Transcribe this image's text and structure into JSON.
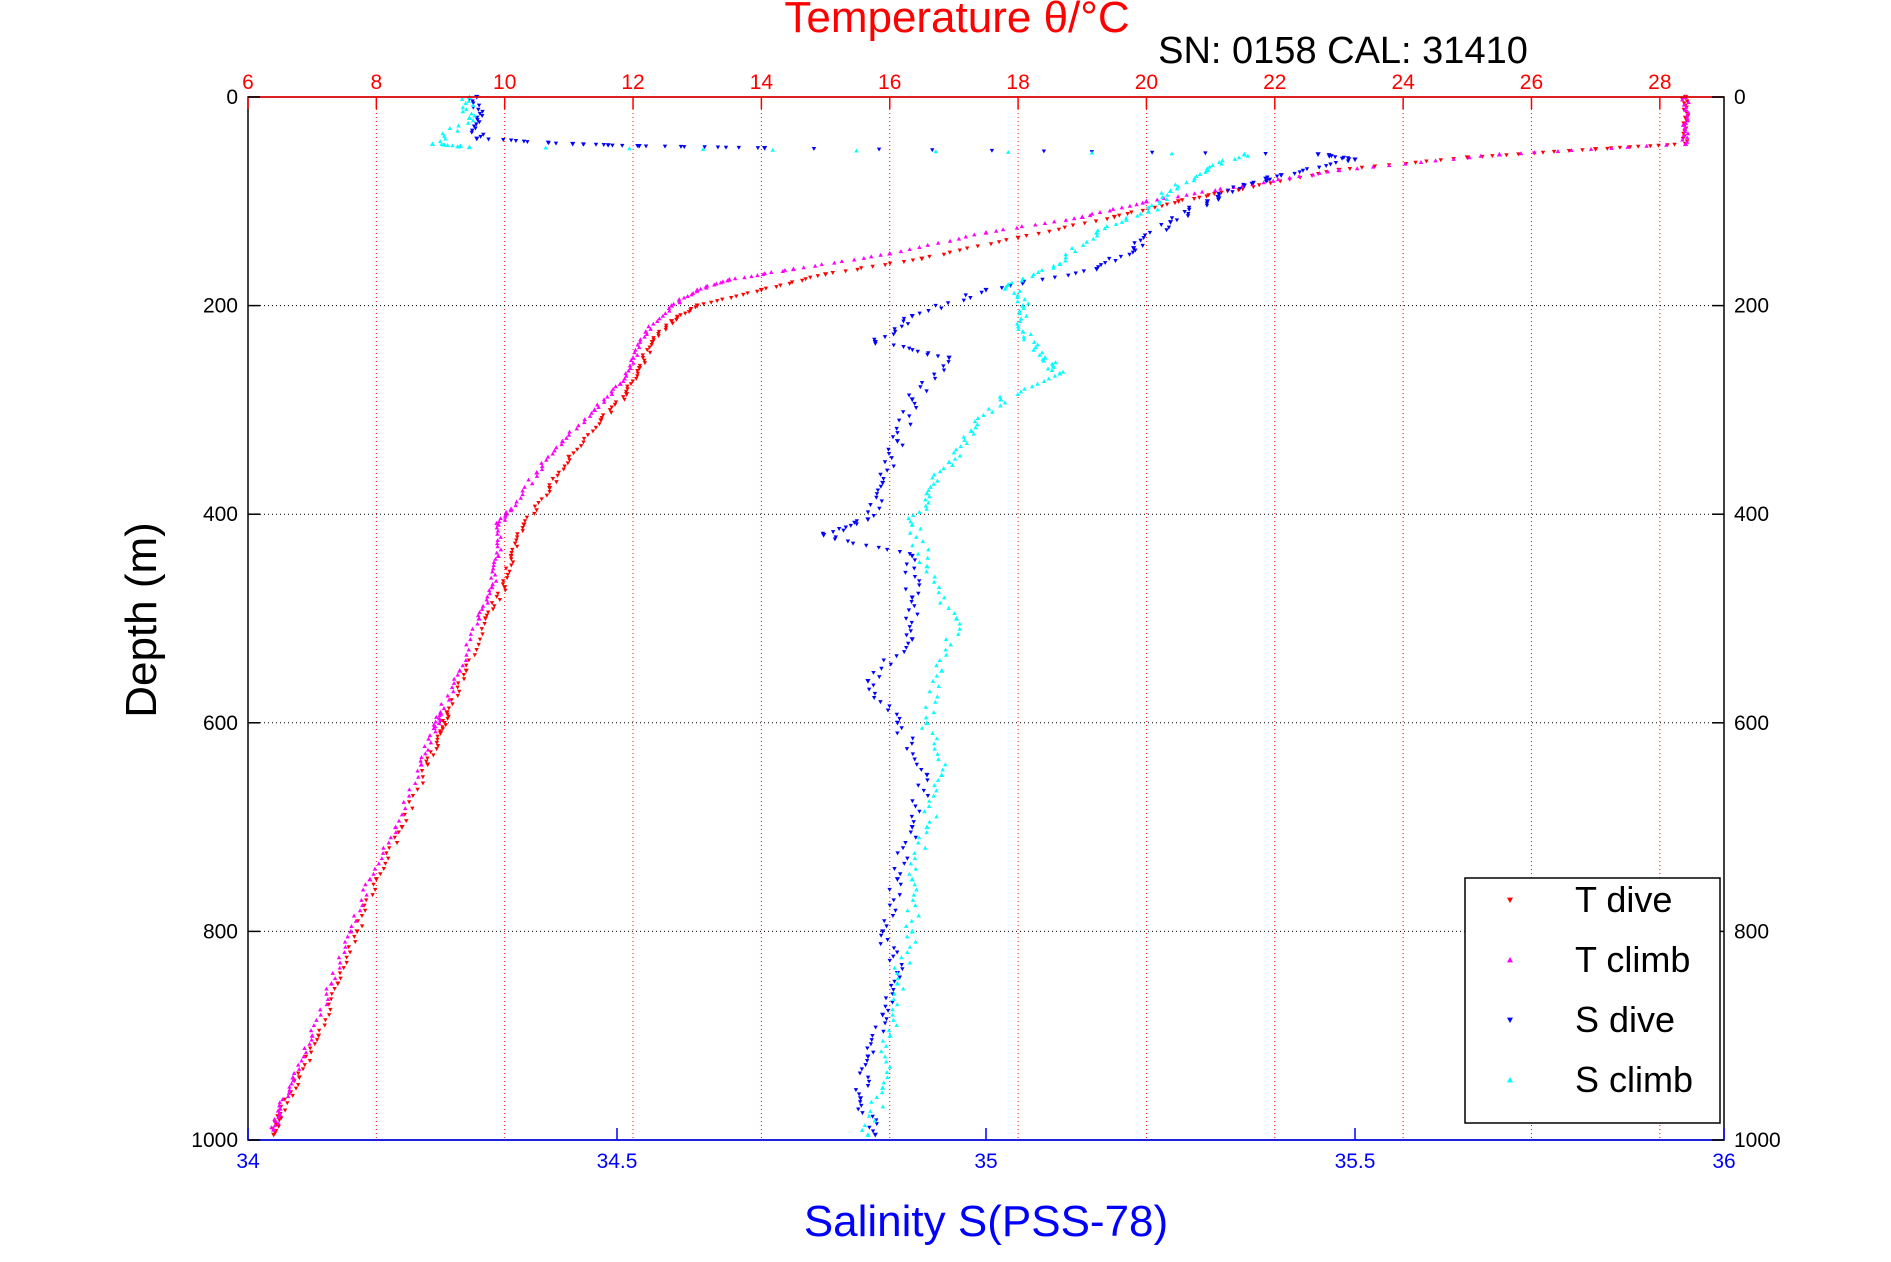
{
  "chart_data": {
    "type": "scatter",
    "title": "Temperature θ/°C",
    "subtitle": "SN: 0158  CAL: 31410",
    "xlabel": "Salinity S(PSS-78)",
    "x2label": "Temperature θ/°C",
    "ylabel": "Depth (m)",
    "xlim": [
      34,
      36
    ],
    "x2lim": [
      6,
      29
    ],
    "ylim": [
      1000,
      0
    ],
    "x_ticks": [
      "34",
      "34.5",
      "35",
      "35.5",
      "36"
    ],
    "x_tick_values": [
      34,
      34.5,
      35,
      35.5,
      36
    ],
    "x2_ticks": [
      "6",
      "8",
      "10",
      "12",
      "14",
      "16",
      "18",
      "20",
      "22",
      "24",
      "26",
      "28"
    ],
    "x2_tick_values": [
      6,
      8,
      10,
      12,
      14,
      16,
      18,
      20,
      22,
      24,
      26,
      28
    ],
    "y_ticks": [
      "0",
      "200",
      "400",
      "600",
      "800",
      "1000"
    ],
    "y_tick_values": [
      0,
      200,
      400,
      600,
      800,
      1000
    ],
    "grid": true,
    "legend_position": "bottom-right",
    "colors": {
      "t_dive": "#ff0000",
      "t_climb": "#ff00ff",
      "s_dive": "#0000ff",
      "s_climb": "#00ffff",
      "top_axis": "#ff0000",
      "bottom_axis": "#0000ff"
    },
    "series": [
      {
        "name": "T dive",
        "axis": "temperature",
        "marker": "triangle-down",
        "points": [
          [
            28.4,
            0
          ],
          [
            28.4,
            20
          ],
          [
            28.4,
            45
          ],
          [
            27,
            50
          ],
          [
            25,
            58
          ],
          [
            23,
            70
          ],
          [
            21.5,
            88
          ],
          [
            20.5,
            100
          ],
          [
            19.5,
            115
          ],
          [
            18,
            135
          ],
          [
            16.5,
            155
          ],
          [
            15,
            170
          ],
          [
            14,
            185
          ],
          [
            13,
            200
          ],
          [
            12.6,
            215
          ],
          [
            12.3,
            235
          ],
          [
            12.1,
            260
          ],
          [
            11.9,
            285
          ],
          [
            11.5,
            310
          ],
          [
            11,
            345
          ],
          [
            10.7,
            375
          ],
          [
            10.3,
            410
          ],
          [
            10.1,
            440
          ],
          [
            10,
            470
          ],
          [
            9.7,
            500
          ],
          [
            9.4,
            550
          ],
          [
            9.1,
            590
          ],
          [
            9,
            610
          ],
          [
            8.8,
            640
          ],
          [
            8.4,
            700
          ],
          [
            8,
            750
          ],
          [
            7.7,
            800
          ],
          [
            7.4,
            850
          ],
          [
            7.1,
            900
          ],
          [
            6.8,
            940
          ],
          [
            6.5,
            975
          ],
          [
            6.4,
            995
          ]
        ]
      },
      {
        "name": "T climb",
        "axis": "temperature",
        "marker": "triangle-up",
        "points": [
          [
            28.4,
            0
          ],
          [
            28.4,
            25
          ],
          [
            28.4,
            45
          ],
          [
            25.5,
            55
          ],
          [
            23,
            70
          ],
          [
            21.5,
            85
          ],
          [
            20,
            100
          ],
          [
            19,
            115
          ],
          [
            17.5,
            130
          ],
          [
            16,
            150
          ],
          [
            14.5,
            165
          ],
          [
            13.5,
            175
          ],
          [
            13,
            185
          ],
          [
            12.6,
            200
          ],
          [
            12.2,
            225
          ],
          [
            12,
            250
          ],
          [
            11.8,
            275
          ],
          [
            11.4,
            300
          ],
          [
            10.9,
            330
          ],
          [
            10.5,
            360
          ],
          [
            10.1,
            395
          ],
          [
            9.9,
            410
          ],
          [
            9.9,
            440
          ],
          [
            9.8,
            470
          ],
          [
            9.6,
            500
          ],
          [
            9.3,
            550
          ],
          [
            9,
            590
          ],
          [
            8.9,
            605
          ],
          [
            8.7,
            640
          ],
          [
            8.3,
            700
          ],
          [
            7.9,
            750
          ],
          [
            7.6,
            800
          ],
          [
            7.3,
            850
          ],
          [
            7,
            900
          ],
          [
            6.7,
            940
          ],
          [
            6.5,
            970
          ],
          [
            6.4,
            990
          ]
        ]
      },
      {
        "name": "S dive",
        "axis": "salinity",
        "marker": "triangle-down",
        "points": [
          [
            34.31,
            0
          ],
          [
            34.31,
            20
          ],
          [
            34.31,
            40
          ],
          [
            34.44,
            45
          ],
          [
            34.53,
            47
          ],
          [
            34.7,
            49
          ],
          [
            35.45,
            55
          ],
          [
            35.5,
            60
          ],
          [
            35.4,
            75
          ],
          [
            35.35,
            85
          ],
          [
            35.3,
            100
          ],
          [
            35.25,
            120
          ],
          [
            35.2,
            145
          ],
          [
            35.15,
            165
          ],
          [
            35,
            185
          ],
          [
            34.9,
            210
          ],
          [
            34.85,
            235
          ],
          [
            34.95,
            250
          ],
          [
            34.9,
            290
          ],
          [
            34.88,
            330
          ],
          [
            34.86,
            370
          ],
          [
            34.84,
            405
          ],
          [
            34.78,
            420
          ],
          [
            34.9,
            440
          ],
          [
            34.9,
            480
          ],
          [
            34.9,
            520
          ],
          [
            34.84,
            560
          ],
          [
            34.88,
            600
          ],
          [
            34.92,
            650
          ],
          [
            34.9,
            700
          ],
          [
            34.88,
            750
          ],
          [
            34.86,
            800
          ],
          [
            34.88,
            840
          ],
          [
            34.86,
            880
          ],
          [
            34.84,
            920
          ],
          [
            34.83,
            960
          ],
          [
            34.85,
            995
          ]
        ]
      },
      {
        "name": "S climb",
        "axis": "salinity",
        "marker": "triangle-up",
        "points": [
          [
            34.3,
            0
          ],
          [
            34.3,
            20
          ],
          [
            34.25,
            45
          ],
          [
            34.3,
            48
          ],
          [
            35.35,
            55
          ],
          [
            35.3,
            70
          ],
          [
            35.25,
            90
          ],
          [
            35.22,
            110
          ],
          [
            35.15,
            130
          ],
          [
            35.1,
            160
          ],
          [
            35.03,
            180
          ],
          [
            35.05,
            200
          ],
          [
            35.05,
            225
          ],
          [
            35.08,
            250
          ],
          [
            35.1,
            265
          ],
          [
            35.02,
            290
          ],
          [
            34.98,
            320
          ],
          [
            34.95,
            350
          ],
          [
            34.92,
            380
          ],
          [
            34.9,
            410
          ],
          [
            34.92,
            450
          ],
          [
            34.96,
            500
          ],
          [
            34.94,
            550
          ],
          [
            34.92,
            600
          ],
          [
            34.94,
            650
          ],
          [
            34.92,
            700
          ],
          [
            34.9,
            750
          ],
          [
            34.9,
            800
          ],
          [
            34.88,
            850
          ],
          [
            34.87,
            900
          ],
          [
            34.86,
            950
          ],
          [
            34.84,
            995
          ]
        ]
      }
    ]
  }
}
